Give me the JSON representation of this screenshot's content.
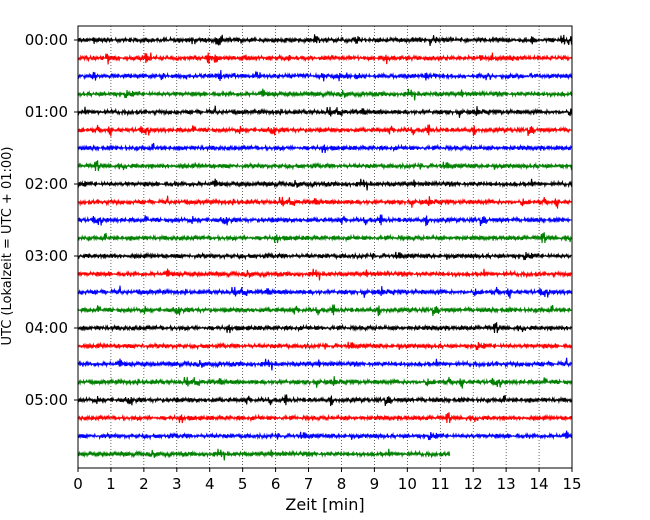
{
  "chart_data": {
    "type": "line",
    "xlabel": "Zeit  [min]",
    "ylabel": "UTC (Lokalzeit = UTC + 01:00)",
    "xlim": [
      0,
      15
    ],
    "xticks": [
      0,
      1,
      2,
      3,
      4,
      5,
      6,
      7,
      8,
      9,
      10,
      11,
      12,
      13,
      14,
      15
    ],
    "ytick_labels": [
      "00:00",
      "01:00",
      "02:00",
      "03:00",
      "04:00",
      "05:00"
    ],
    "ytick_row_index": [
      0,
      4,
      8,
      12,
      16,
      20
    ],
    "grid_x": true,
    "trace_colors": [
      "#000000",
      "#ff0000",
      "#0000ff",
      "#008000"
    ],
    "trace_interval_minutes": 15,
    "series": [
      {
        "start": "00:00",
        "x_end": 15,
        "color": "#000000"
      },
      {
        "start": "00:15",
        "x_end": 15,
        "color": "#ff0000"
      },
      {
        "start": "00:30",
        "x_end": 15,
        "color": "#0000ff"
      },
      {
        "start": "00:45",
        "x_end": 15,
        "color": "#008000"
      },
      {
        "start": "01:00",
        "x_end": 15,
        "color": "#000000"
      },
      {
        "start": "01:15",
        "x_end": 15,
        "color": "#ff0000"
      },
      {
        "start": "01:30",
        "x_end": 15,
        "color": "#0000ff"
      },
      {
        "start": "01:45",
        "x_end": 15,
        "color": "#008000"
      },
      {
        "start": "02:00",
        "x_end": 15,
        "color": "#000000"
      },
      {
        "start": "02:15",
        "x_end": 15,
        "color": "#ff0000"
      },
      {
        "start": "02:30",
        "x_end": 15,
        "color": "#0000ff"
      },
      {
        "start": "02:45",
        "x_end": 15,
        "color": "#008000"
      },
      {
        "start": "03:00",
        "x_end": 15,
        "color": "#000000"
      },
      {
        "start": "03:15",
        "x_end": 15,
        "color": "#ff0000"
      },
      {
        "start": "03:30",
        "x_end": 15,
        "color": "#0000ff"
      },
      {
        "start": "03:45",
        "x_end": 15,
        "color": "#008000"
      },
      {
        "start": "04:00",
        "x_end": 15,
        "color": "#000000"
      },
      {
        "start": "04:15",
        "x_end": 15,
        "color": "#ff0000"
      },
      {
        "start": "04:30",
        "x_end": 15,
        "color": "#0000ff"
      },
      {
        "start": "04:45",
        "x_end": 15,
        "color": "#008000"
      },
      {
        "start": "05:00",
        "x_end": 15,
        "color": "#000000"
      },
      {
        "start": "05:15",
        "x_end": 15,
        "color": "#ff0000"
      },
      {
        "start": "05:30",
        "x_end": 15,
        "color": "#0000ff"
      },
      {
        "start": "05:45",
        "x_end": 11.3,
        "color": "#008000"
      }
    ]
  }
}
